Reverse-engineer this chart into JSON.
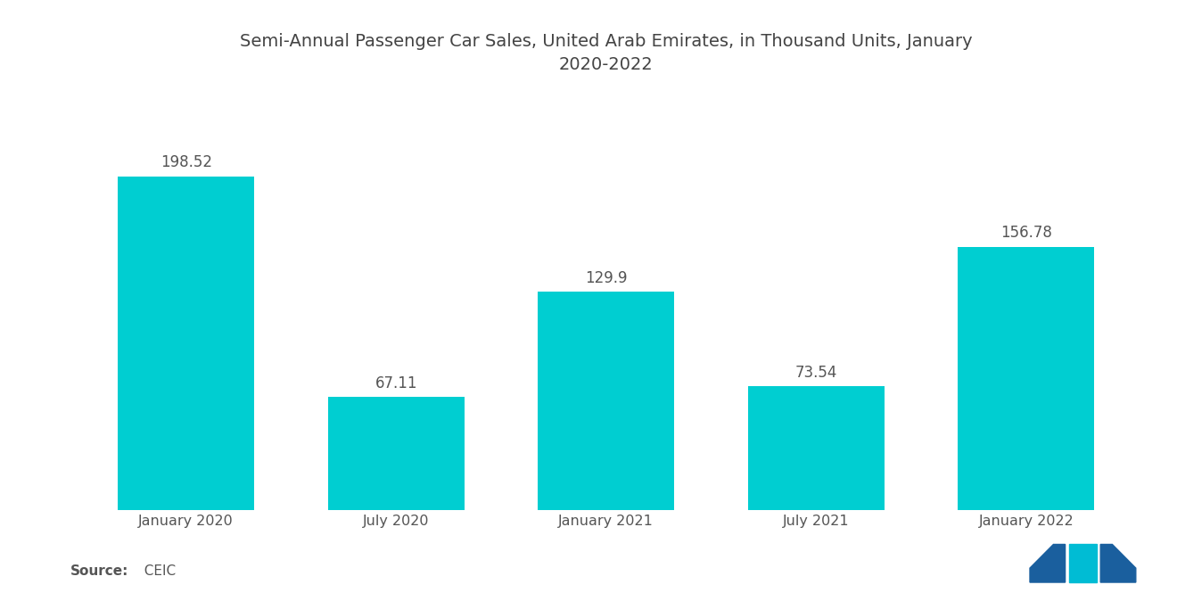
{
  "title": "Semi-Annual Passenger Car Sales, United Arab Emirates, in Thousand Units, January\n2020-2022",
  "categories": [
    "January 2020",
    "July 2020",
    "January 2021",
    "July 2021",
    "January 2022"
  ],
  "values": [
    198.52,
    67.11,
    129.9,
    73.54,
    156.78
  ],
  "bar_color": "#00CED1",
  "label_color": "#555555",
  "title_color": "#444444",
  "source_label": "Source:",
  "source_value": "  CEIC",
  "background_color": "#ffffff",
  "title_fontsize": 14,
  "label_fontsize": 12,
  "tick_fontsize": 11.5,
  "source_fontsize": 11,
  "bar_width": 0.65,
  "ylim": [
    0,
    240
  ]
}
